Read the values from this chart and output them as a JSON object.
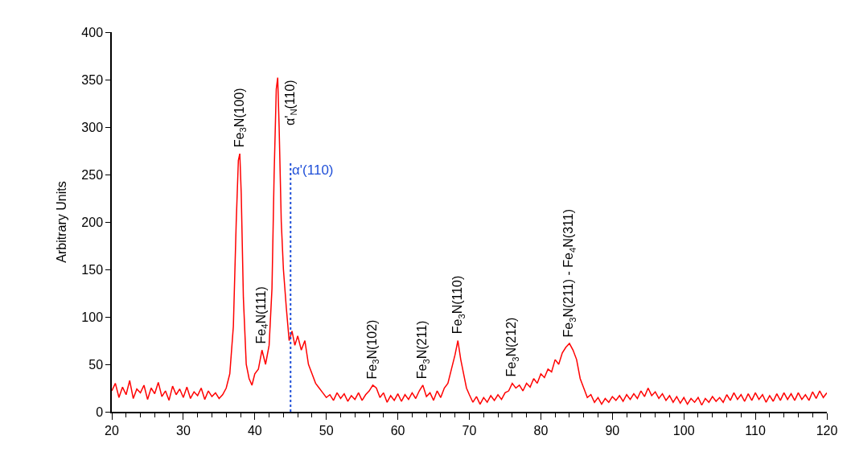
{
  "chart_data": {
    "type": "line",
    "ylabel": "Arbitrary Units",
    "x": [
      20,
      20.5,
      21,
      21.5,
      22,
      22.5,
      23,
      23.5,
      24,
      24.5,
      25,
      25.5,
      26,
      26.5,
      27,
      27.5,
      28,
      28.5,
      29,
      29.5,
      30,
      30.5,
      31,
      31.5,
      32,
      32.5,
      33,
      33.5,
      34,
      34.5,
      35,
      35.5,
      36,
      36.5,
      37,
      37.4,
      37.7,
      37.9,
      38.1,
      38.4,
      38.8,
      39.2,
      39.6,
      40,
      40.5,
      41,
      41.5,
      42,
      42.4,
      42.7,
      43,
      43.2,
      43.4,
      43.7,
      44,
      44.4,
      44.8,
      45.2,
      45.6,
      46,
      46.5,
      47,
      47.5,
      48,
      48.5,
      49,
      49.5,
      50,
      50.5,
      51,
      51.5,
      52,
      52.5,
      53,
      53.5,
      54,
      54.5,
      55,
      55.5,
      56,
      56.5,
      57,
      57.5,
      58,
      58.5,
      59,
      59.5,
      60,
      60.5,
      61,
      61.5,
      62,
      62.5,
      63,
      63.5,
      64,
      64.5,
      65,
      65.5,
      66,
      66.5,
      67,
      67.5,
      68,
      68.4,
      68.8,
      69.2,
      69.6,
      70,
      70.5,
      71,
      71.5,
      72,
      72.5,
      73,
      73.5,
      74,
      74.5,
      75,
      75.5,
      76,
      76.5,
      77,
      77.5,
      78,
      78.5,
      79,
      79.5,
      80,
      80.5,
      81,
      81.5,
      82,
      82.5,
      83,
      83.5,
      84,
      84.5,
      85,
      85.5,
      86,
      86.5,
      87,
      87.5,
      88,
      88.5,
      89,
      89.5,
      90,
      90.5,
      91,
      91.5,
      92,
      92.5,
      93,
      93.5,
      94,
      94.5,
      95,
      95.5,
      96,
      96.5,
      97,
      97.5,
      98,
      98.5,
      99,
      99.5,
      100,
      100.5,
      101,
      101.5,
      102,
      102.5,
      103,
      103.5,
      104,
      104.5,
      105,
      105.5,
      106,
      106.5,
      107,
      107.5,
      108,
      108.5,
      109,
      109.5,
      110,
      110.5,
      111,
      111.5,
      112,
      112.5,
      113,
      113.5,
      114,
      114.5,
      115,
      115.5,
      116,
      116.5,
      117,
      117.5,
      118,
      118.5,
      119,
      119.5,
      120
    ],
    "series": [
      {
        "color": "#ff0000",
        "values": [
          22,
          30,
          15,
          26,
          18,
          33,
          14,
          24,
          20,
          28,
          13,
          25,
          19,
          31,
          16,
          22,
          12,
          27,
          18,
          24,
          15,
          26,
          14,
          21,
          17,
          25,
          13,
          22,
          16,
          20,
          14,
          18,
          25,
          40,
          90,
          200,
          265,
          272,
          230,
          120,
          50,
          35,
          28,
          40,
          45,
          65,
          50,
          70,
          130,
          250,
          340,
          352,
          300,
          200,
          150,
          110,
          75,
          85,
          70,
          80,
          65,
          75,
          50,
          40,
          30,
          25,
          20,
          15,
          18,
          12,
          20,
          14,
          19,
          11,
          17,
          13,
          20,
          12,
          18,
          22,
          28,
          25,
          15,
          20,
          10,
          17,
          12,
          19,
          11,
          18,
          13,
          20,
          14,
          22,
          28,
          16,
          20,
          12,
          22,
          15,
          25,
          30,
          45,
          60,
          75,
          55,
          40,
          25,
          18,
          10,
          16,
          8,
          15,
          10,
          17,
          12,
          18,
          13,
          20,
          22,
          30,
          25,
          28,
          22,
          30,
          26,
          35,
          30,
          40,
          36,
          45,
          42,
          55,
          50,
          62,
          68,
          72,
          65,
          55,
          35,
          25,
          15,
          18,
          10,
          15,
          8,
          14,
          10,
          16,
          12,
          17,
          11,
          18,
          13,
          19,
          14,
          22,
          16,
          25,
          17,
          21,
          14,
          19,
          12,
          17,
          10,
          16,
          9,
          15,
          8,
          14,
          10,
          15,
          7,
          14,
          10,
          16,
          11,
          15,
          10,
          18,
          12,
          20,
          13,
          18,
          11,
          19,
          12,
          20,
          13,
          18,
          10,
          17,
          11,
          19,
          12,
          20,
          13,
          19,
          12,
          20,
          13,
          18,
          12,
          21,
          14,
          22,
          15,
          20
        ]
      }
    ],
    "xlim": [
      20,
      120
    ],
    "xticks": [
      20,
      30,
      40,
      50,
      60,
      70,
      80,
      90,
      100,
      110,
      120,
      {
        "value": 22,
        "label": null
      },
      {
        "value": 24,
        "label": null
      },
      {
        "value": 26,
        "label": null
      },
      {
        "value": 28,
        "label": null
      },
      {
        "value": 32,
        "label": null
      },
      {
        "value": 34,
        "label": null
      },
      {
        "value": 36,
        "label": null
      },
      {
        "value": 38,
        "label": null
      },
      {
        "value": 42,
        "label": null
      },
      {
        "value": 44,
        "label": null
      },
      {
        "value": 46,
        "label": null
      },
      {
        "value": 48,
        "label": null
      },
      {
        "value": 52,
        "label": null
      },
      {
        "value": 54,
        "label": null
      },
      {
        "value": 56,
        "label": null
      },
      {
        "value": 58,
        "label": null
      },
      {
        "value": 62,
        "label": null
      },
      {
        "value": 64,
        "label": null
      },
      {
        "value": 66,
        "label": null
      },
      {
        "value": 68,
        "label": null
      },
      {
        "value": 72,
        "label": null
      },
      {
        "value": 74,
        "label": null
      },
      {
        "value": 76,
        "label": null
      },
      {
        "value": 78,
        "label": null
      },
      {
        "value": 82,
        "label": null
      },
      {
        "value": 84,
        "label": null
      },
      {
        "value": 86,
        "label": null
      },
      {
        "value": 88,
        "label": null
      },
      {
        "value": 92,
        "label": null
      },
      {
        "value": 94,
        "label": null
      },
      {
        "value": 96,
        "label": null
      },
      {
        "value": 98,
        "label": null
      },
      {
        "value": 102,
        "label": null
      },
      {
        "value": 104,
        "label": null
      },
      {
        "value": 106,
        "label": null
      },
      {
        "value": 108,
        "label": null
      },
      {
        "value": 112,
        "label": null
      },
      {
        "value": 114,
        "label": null
      },
      {
        "value": 116,
        "label": null
      },
      {
        "value": 118,
        "label": null
      }
    ],
    "ylim": [
      0,
      400
    ],
    "yticks": [
      0,
      50,
      100,
      150,
      200,
      250,
      300,
      350,
      400
    ],
    "marker": "none",
    "line_style": "solid",
    "ref_lines": [
      {
        "axis": "x",
        "value": 45,
        "label": "α'(110)",
        "color": "#1f4fd8",
        "line_style": "dotted"
      }
    ],
    "annotations": [
      {
        "text": "Fe$_{3}$N(100)",
        "x": 37.9,
        "y": 272
      },
      {
        "text": "Fe$_{4}$N(111)",
        "x": 41,
        "y": 65
      },
      {
        "text": "α'$_{N}$(110)",
        "x": 43.2,
        "y": 352
      },
      {
        "text": "Fe$_{3}$N(102)",
        "x": 56.5,
        "y": 28
      },
      {
        "text": "Fe$_{3}$N(211)",
        "x": 63.5,
        "y": 28
      },
      {
        "text": "Fe$_{3}$N(110)",
        "x": 68.4,
        "y": 75
      },
      {
        "text": "Fe$_{3}$N(212)",
        "x": 76,
        "y": 30
      },
      {
        "text": "Fe$_{3}$N(211) - Fe$_{4}$N(311)",
        "x": 84,
        "y": 72
      }
    ]
  }
}
